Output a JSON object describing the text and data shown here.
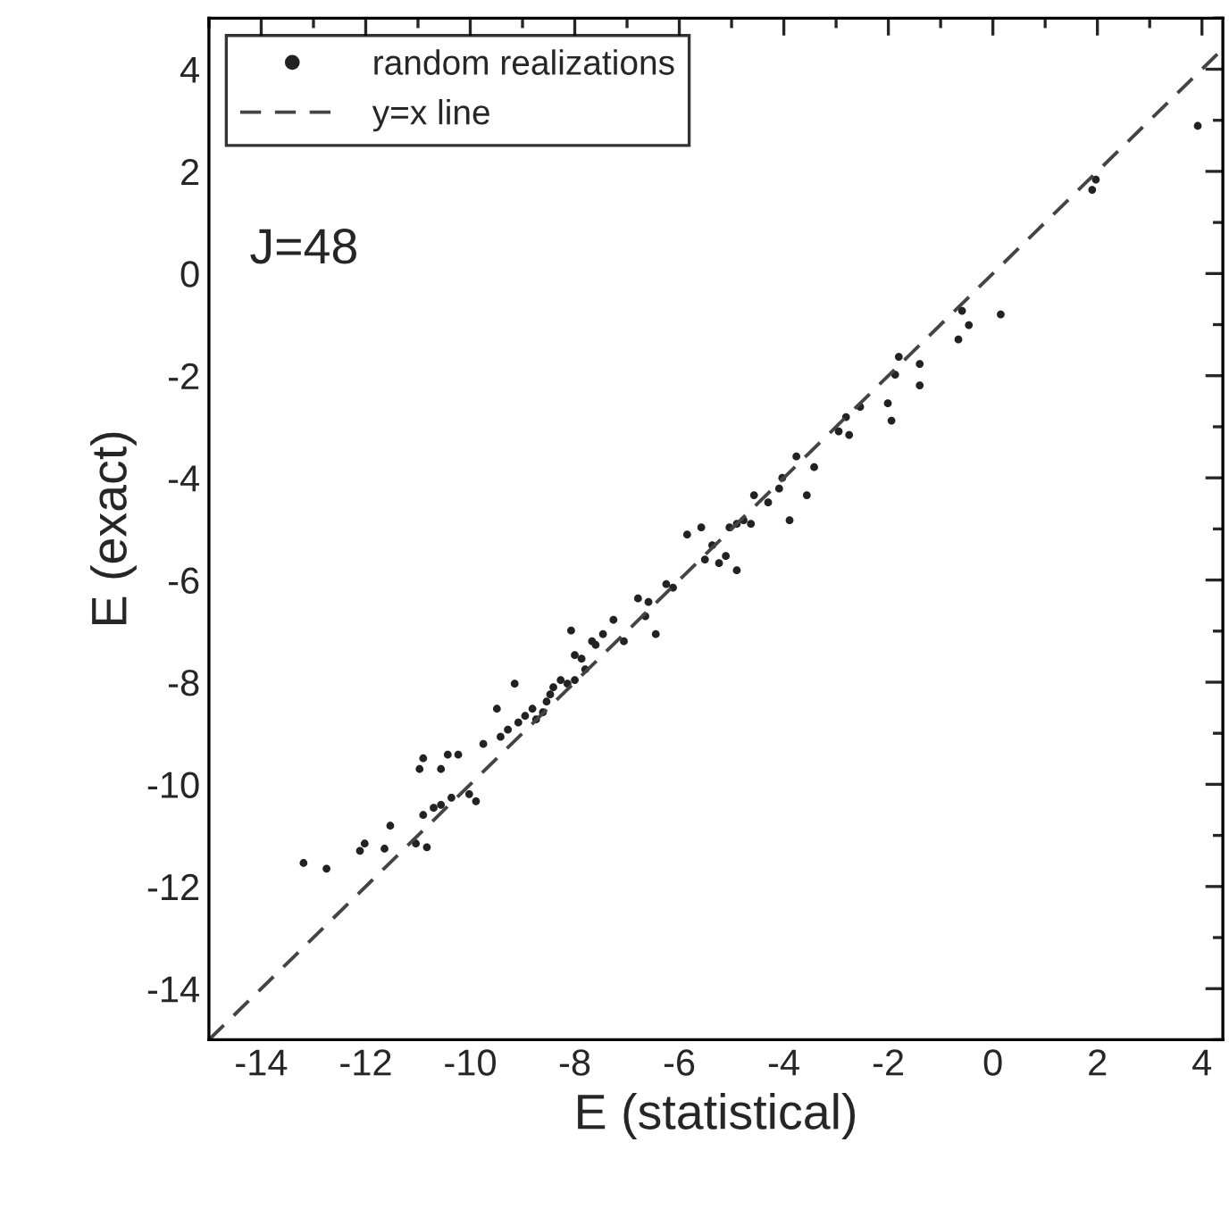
{
  "chart_data": {
    "type": "scatter",
    "xlabel": "E (statistical)",
    "ylabel": "E (exact)",
    "xlim": [
      -15,
      4.4
    ],
    "ylim": [
      -15,
      5
    ],
    "xticks": [
      -14,
      -12,
      -10,
      -8,
      -6,
      -4,
      -2,
      0,
      2,
      4
    ],
    "yticks": [
      -14,
      -12,
      -10,
      -8,
      -6,
      -4,
      -2,
      0,
      2,
      4
    ],
    "grid": false,
    "legend": "top left",
    "annotations": [
      "J=48"
    ],
    "series": [
      {
        "name": "random realizations",
        "marker": "circle",
        "color": "#222222",
        "x": [
          -13.19,
          -12.75,
          -12.11,
          -12.02,
          -11.64,
          -11.53,
          -11.04,
          -10.9,
          -10.83,
          -10.97,
          -10.9,
          -10.56,
          -10.43,
          -10.23,
          -10.7,
          -10.56,
          -10.36,
          -9.89,
          -10.02,
          -9.75,
          -9.49,
          -9.42,
          -9.28,
          -9.15,
          -9.08,
          -8.95,
          -8.81,
          -8.74,
          -8.61,
          -8.54,
          -8.47,
          -8.41,
          -8.27,
          -8.14,
          -8.07,
          -8.0,
          -8.0,
          -7.87,
          -7.8,
          -7.67,
          -7.6,
          -7.46,
          -7.26,
          -7.06,
          -6.79,
          -6.65,
          -6.59,
          -6.45,
          -6.25,
          -6.12,
          -5.85,
          -5.58,
          -5.51,
          -5.37,
          -5.24,
          -5.11,
          -5.04,
          -4.9,
          -4.9,
          -4.77,
          -4.63,
          -4.57,
          -4.3,
          -4.09,
          -4.03,
          -3.89,
          -3.76,
          -3.56,
          -3.42,
          -2.95,
          -2.81,
          -2.75,
          -2.54,
          -2.01,
          -1.94,
          -1.87,
          -1.8,
          -1.4,
          -1.4,
          -0.66,
          -0.59,
          -0.46,
          0.15,
          1.9,
          1.97,
          3.92
        ],
        "values": [
          -11.54,
          -11.65,
          -11.3,
          -11.16,
          -11.26,
          -10.81,
          -11.16,
          -10.6,
          -11.23,
          -9.7,
          -9.49,
          -9.7,
          -9.42,
          -9.42,
          -10.46,
          -10.4,
          -10.26,
          -10.33,
          -10.19,
          -9.21,
          -8.52,
          -9.07,
          -8.93,
          -8.03,
          -8.79,
          -8.66,
          -8.52,
          -8.73,
          -8.59,
          -8.38,
          -8.24,
          -8.1,
          -7.96,
          -8.03,
          -6.99,
          -7.96,
          -7.47,
          -7.54,
          -7.75,
          -7.2,
          -7.27,
          -7.06,
          -6.78,
          -7.2,
          -6.36,
          -6.71,
          -6.43,
          -7.06,
          -6.08,
          -6.15,
          -5.11,
          -4.97,
          -5.6,
          -5.32,
          -5.67,
          -5.53,
          -4.97,
          -5.81,
          -4.9,
          -4.83,
          -4.9,
          -4.34,
          -4.48,
          -4.21,
          -4.0,
          -4.83,
          -3.58,
          -4.34,
          -3.79,
          -3.09,
          -2.81,
          -3.16,
          -2.61,
          -2.54,
          -2.88,
          -1.98,
          -1.63,
          -1.77,
          -2.19,
          -1.29,
          -0.73,
          -1.01,
          -0.8,
          1.64,
          1.84,
          2.89
        ]
      },
      {
        "name": "y=x line",
        "type": "line",
        "line_style": "dashed",
        "color": "#444444",
        "x": [
          -15,
          4.4
        ],
        "values": [
          -15,
          4.4
        ]
      }
    ]
  }
}
